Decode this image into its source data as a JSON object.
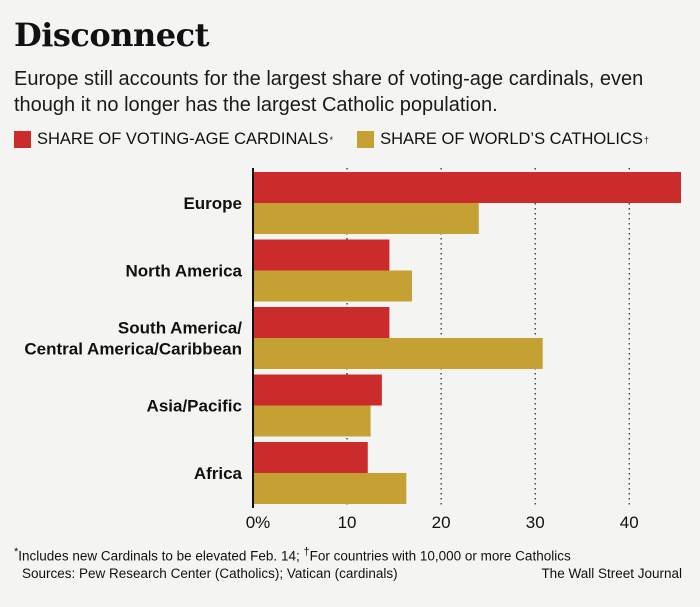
{
  "title": "Disconnect",
  "subtitle": "Europe still accounts for the largest share of voting-age cardinals, even though it no longer has the largest Catholic population.",
  "legend": {
    "cardinals_label": "SHARE OF VOTING-AGE CARDINALS",
    "cardinals_mark": "*",
    "catholics_label": "SHARE OF WORLD’S CATHOLICS",
    "catholics_mark": "†"
  },
  "colors": {
    "cardinals": "#cc2b2b",
    "catholics": "#c4a132",
    "axis": "#111111"
  },
  "chart_data": {
    "type": "bar",
    "orientation": "horizontal",
    "categories": [
      [
        "Europe"
      ],
      [
        "North America"
      ],
      [
        "South America/",
        "Central America/Caribbean"
      ],
      [
        "Asia/Pacific"
      ],
      [
        "Africa"
      ]
    ],
    "series": [
      {
        "name": "SHARE OF VOTING-AGE CARDINALS",
        "values": [
          45.5,
          14.5,
          14.5,
          13.7,
          12.2
        ]
      },
      {
        "name": "SHARE OF WORLD’S CATHOLICS",
        "values": [
          24,
          16.9,
          30.8,
          12.5,
          16.3
        ]
      }
    ],
    "xlim": [
      0,
      45.5
    ],
    "xticks": [
      0,
      10,
      20,
      30,
      40
    ],
    "xtick_labels": [
      "0%",
      "10",
      "20",
      "30",
      "40"
    ],
    "grid": "vertical dotted"
  },
  "footnote": {
    "mark1": "*",
    "text1": "Includes new Cardinals to be elevated Feb. 14; ",
    "mark2": "†",
    "text2": "For countries with 10,000 or more Catholics"
  },
  "sources": "Sources: Pew Research Center (Catholics); Vatican (cardinals)",
  "credit": "The Wall Street Journal"
}
